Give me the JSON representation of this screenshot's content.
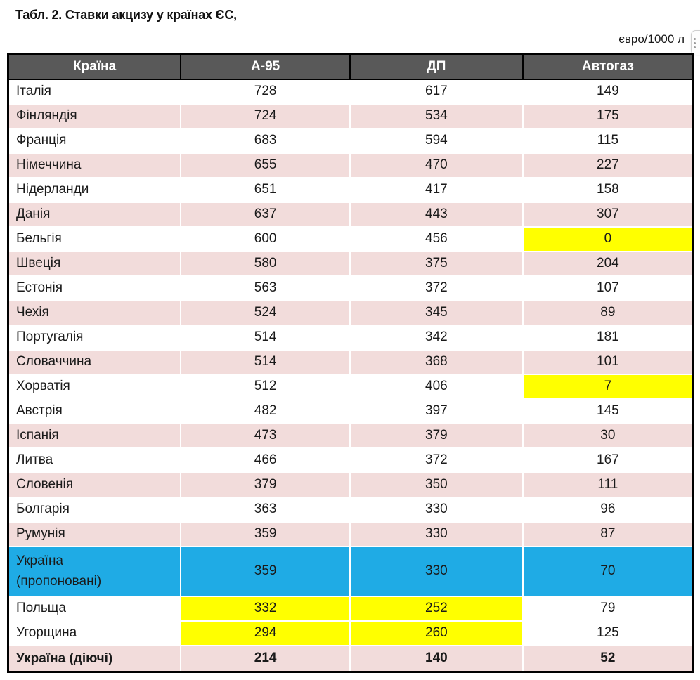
{
  "title": "Табл. 2. Ставки акцизу у країнах ЄС,",
  "unit_label": "євро/1000 л",
  "edge_button": {
    "icon": "more-dots-icon"
  },
  "colors": {
    "header_bg": "#595959",
    "header_text": "#ffffff",
    "row_pink": "#f2dcdb",
    "row_blue": "#1fabe5",
    "highlight_yellow": "#ffff00",
    "border_black": "#000000"
  },
  "table": {
    "columns": [
      {
        "key": "name",
        "label": "Країна"
      },
      {
        "key": "a95",
        "label": "А-95"
      },
      {
        "key": "dp",
        "label": "ДП"
      },
      {
        "key": "autogaz",
        "label": "Автогаз"
      }
    ],
    "rows": [
      {
        "name": "Італія",
        "a95": 728,
        "dp": 617,
        "autogaz": 149,
        "bg": "white"
      },
      {
        "name": "Фінляндія",
        "a95": 724,
        "dp": 534,
        "autogaz": 175,
        "bg": "pink"
      },
      {
        "name": "Франція",
        "a95": 683,
        "dp": 594,
        "autogaz": 115,
        "bg": "white"
      },
      {
        "name": "Німеччина",
        "a95": 655,
        "dp": 470,
        "autogaz": 227,
        "bg": "pink"
      },
      {
        "name": "Нідерланди",
        "a95": 651,
        "dp": 417,
        "autogaz": 158,
        "bg": "white"
      },
      {
        "name": "Данія",
        "a95": 637,
        "dp": 443,
        "autogaz": 307,
        "bg": "pink"
      },
      {
        "name": "Бельгія",
        "a95": 600,
        "dp": 456,
        "autogaz": 0,
        "bg": "white",
        "highlight": [
          "autogaz"
        ]
      },
      {
        "name": "Швеція",
        "a95": 580,
        "dp": 375,
        "autogaz": 204,
        "bg": "pink"
      },
      {
        "name": "Естонія",
        "a95": 563,
        "dp": 372,
        "autogaz": 107,
        "bg": "white"
      },
      {
        "name": "Чехія",
        "a95": 524,
        "dp": 345,
        "autogaz": 89,
        "bg": "pink"
      },
      {
        "name": "Португалія",
        "a95": 514,
        "dp": 342,
        "autogaz": 181,
        "bg": "white"
      },
      {
        "name": "Словаччина",
        "a95": 514,
        "dp": 368,
        "autogaz": 101,
        "bg": "pink"
      },
      {
        "name": "Хорватія",
        "a95": 512,
        "dp": 406,
        "autogaz": 7,
        "bg": "white",
        "highlight": [
          "autogaz"
        ]
      },
      {
        "name": "Австрія",
        "a95": 482,
        "dp": 397,
        "autogaz": 145,
        "bg": "white"
      },
      {
        "name": "Іспанія",
        "a95": 473,
        "dp": 379,
        "autogaz": 30,
        "bg": "pink"
      },
      {
        "name": "Литва",
        "a95": 466,
        "dp": 372,
        "autogaz": 167,
        "bg": "white"
      },
      {
        "name": "Словенія",
        "a95": 379,
        "dp": 350,
        "autogaz": 111,
        "bg": "pink"
      },
      {
        "name": "Болгарія",
        "a95": 363,
        "dp": 330,
        "autogaz": 96,
        "bg": "white"
      },
      {
        "name": "Румунія",
        "a95": 359,
        "dp": 330,
        "autogaz": 87,
        "bg": "pink"
      },
      {
        "name": "Україна (пропоновані)",
        "name_lines": [
          "Україна",
          "(пропоновані)"
        ],
        "a95": 359,
        "dp": 330,
        "autogaz": 70,
        "bg": "blue",
        "double_height": true
      },
      {
        "name": "Польща",
        "a95": 332,
        "dp": 252,
        "autogaz": 79,
        "bg": "white",
        "highlight": [
          "a95",
          "dp"
        ]
      },
      {
        "name": "Угорщина",
        "a95": 294,
        "dp": 260,
        "autogaz": 125,
        "bg": "white",
        "highlight": [
          "a95",
          "dp"
        ]
      },
      {
        "name": "Україна (діючі)",
        "a95": 214,
        "dp": 140,
        "autogaz": 52,
        "bg": "pink",
        "bold": true
      }
    ]
  }
}
